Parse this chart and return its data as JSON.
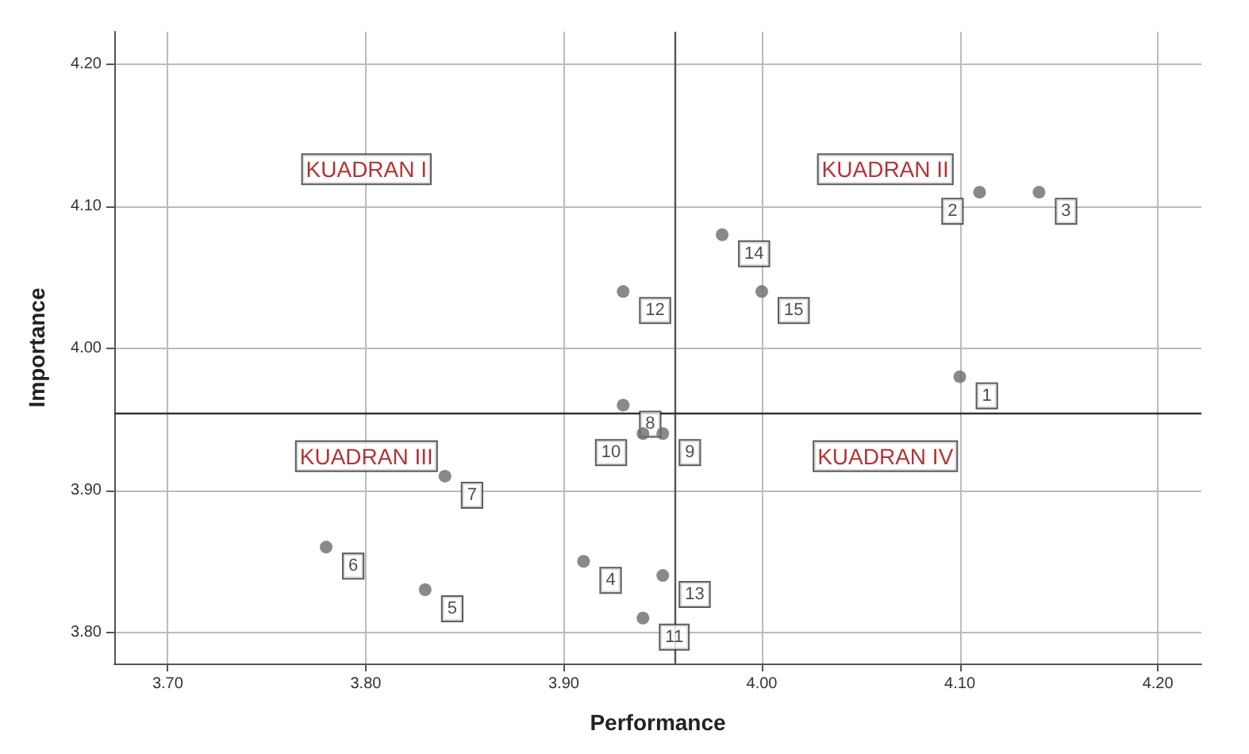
{
  "chart_data": {
    "type": "scatter",
    "xlabel": "Performance",
    "ylabel": "Importance",
    "x": [
      4.1,
      4.11,
      4.14,
      3.91,
      3.83,
      3.78,
      3.84,
      3.93,
      3.95,
      3.94,
      3.94,
      3.93,
      3.95,
      3.98,
      4.0
    ],
    "values": [
      3.98,
      4.11,
      4.11,
      3.85,
      3.83,
      3.86,
      3.91,
      3.96,
      3.94,
      3.94,
      3.81,
      4.04,
      3.84,
      4.08,
      4.04
    ],
    "color": "#6b6b6b",
    "marker": "circle",
    "xlim": [
      3.673,
      4.222
    ],
    "ylim": [
      3.778,
      4.223
    ],
    "xticks": [
      {
        "value": 3.7,
        "label": "3.70"
      },
      {
        "value": 3.8,
        "label": "3.80"
      },
      {
        "value": 3.9,
        "label": "3.90"
      },
      {
        "value": 4.0,
        "label": "4.00"
      },
      {
        "value": 4.1,
        "label": "4.10"
      },
      {
        "value": 4.2,
        "label": "4.20"
      }
    ],
    "yticks": [
      {
        "value": 3.8,
        "label": "3.80"
      },
      {
        "value": 3.9,
        "label": "3.90"
      },
      {
        "value": 4.0,
        "label": "4.00"
      },
      {
        "value": 4.1,
        "label": "4.10"
      },
      {
        "value": 4.2,
        "label": "4.20"
      }
    ],
    "grid": true,
    "ref_lines": [
      {
        "axis": "x",
        "value": 3.956,
        "color": "#555555"
      },
      {
        "axis": "y",
        "value": 3.954,
        "color": "#333333"
      }
    ],
    "annotations": [
      "KUADRAN I",
      "KUADRAN II",
      "KUADRAN III",
      "KUADRAN IV",
      {
        "text": "1",
        "x": 4.1,
        "y": 3.98
      },
      {
        "text": "2",
        "x": 4.11,
        "y": 4.11
      },
      {
        "text": "3",
        "x": 4.14,
        "y": 4.11
      },
      {
        "text": "4",
        "x": 3.91,
        "y": 3.85
      },
      {
        "text": "5",
        "x": 3.83,
        "y": 3.83
      },
      {
        "text": "6",
        "x": 3.78,
        "y": 3.86
      },
      {
        "text": "7",
        "x": 3.84,
        "y": 3.91
      },
      {
        "text": "8",
        "x": 3.93,
        "y": 3.96
      },
      {
        "text": "9",
        "x": 3.95,
        "y": 3.94
      },
      {
        "text": "10",
        "x": 3.94,
        "y": 3.94
      },
      {
        "text": "11",
        "x": 3.94,
        "y": 3.81
      },
      {
        "text": "12",
        "x": 3.93,
        "y": 4.04
      },
      {
        "text": "13",
        "x": 3.95,
        "y": 3.84
      },
      {
        "text": "14",
        "x": 3.98,
        "y": 4.08
      },
      {
        "text": "15",
        "x": 4.0,
        "y": 4.04
      }
    ]
  }
}
